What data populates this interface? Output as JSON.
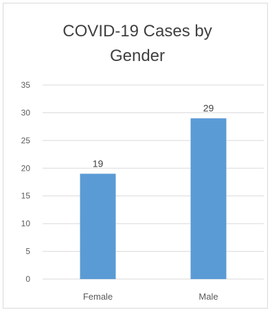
{
  "chart_data": {
    "type": "bar",
    "title": "COVID-19 Cases by Gender",
    "xlabel": "",
    "ylabel": "",
    "categories": [
      "Female",
      "Male"
    ],
    "values": [
      19,
      29
    ],
    "ylim": [
      0,
      35
    ],
    "yticks": [
      0,
      5,
      10,
      15,
      20,
      25,
      30,
      35
    ],
    "grid": true,
    "legend": "none",
    "data_labels": true,
    "colors": {
      "bar": "#5b9bd5",
      "grid": "#d9d9d9",
      "text": "#595959"
    }
  }
}
